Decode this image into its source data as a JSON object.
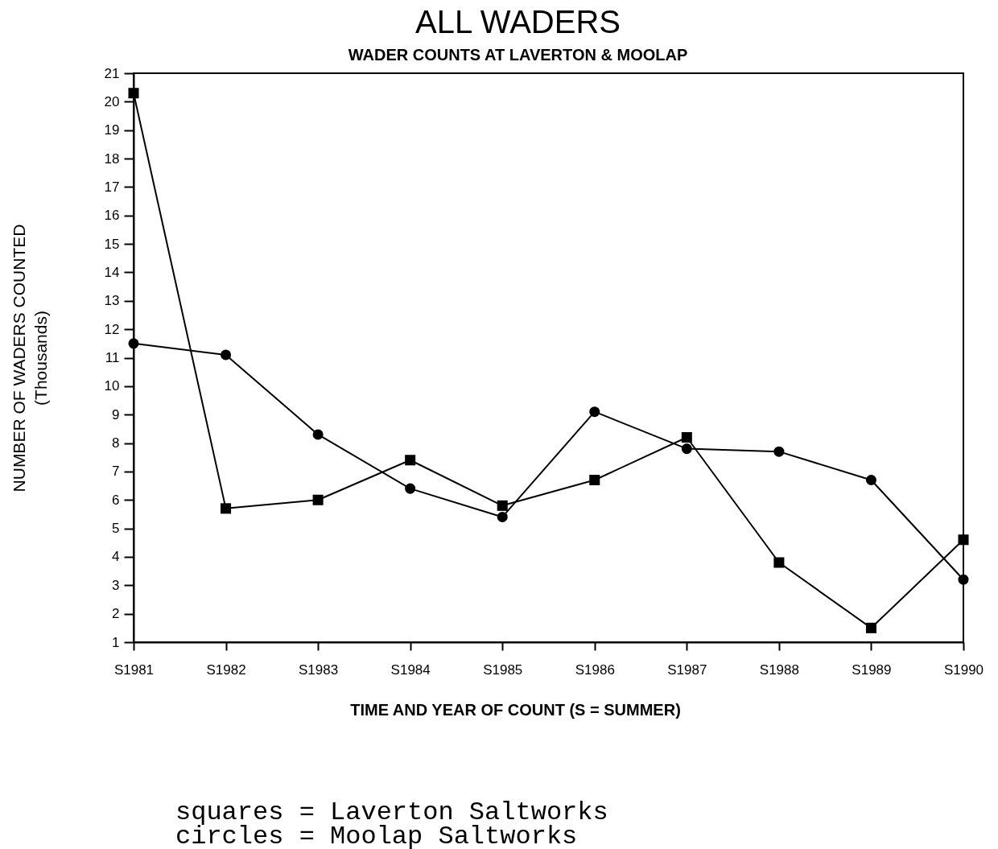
{
  "chart_data": {
    "type": "line",
    "title": "ALL WADERS",
    "subtitle": "WADER COUNTS AT LAVERTON & MOOLAP",
    "xlabel": "TIME AND YEAR OF COUNT (S = SUMMER)",
    "ylabel": "NUMBER OF WADERS COUNTED\n(Thousands)",
    "categories": [
      "S1981",
      "S1982",
      "S1983",
      "S1984",
      "S1985",
      "S1986",
      "S1987",
      "S1988",
      "S1989",
      "S1990"
    ],
    "series": [
      {
        "color": "#000000",
        "marker": "square",
        "values": [
          20.3,
          5.7,
          6.0,
          7.4,
          5.8,
          6.7,
          8.2,
          3.8,
          1.5,
          4.6
        ]
      },
      {
        "color": "#000000",
        "marker": "circle",
        "values": [
          11.5,
          11.1,
          8.3,
          6.4,
          5.4,
          9.1,
          7.8,
          7.7,
          6.7,
          3.2
        ]
      }
    ],
    "ylim": [
      1,
      21
    ],
    "yticks": [
      1,
      2,
      3,
      4,
      5,
      6,
      7,
      8,
      9,
      10,
      11,
      12,
      13,
      14,
      15,
      16,
      17,
      18,
      19,
      20,
      21
    ],
    "grid": false,
    "annotations": [
      "squares = Laverton Saltworks",
      "circles = Moolap Saltworks"
    ]
  }
}
